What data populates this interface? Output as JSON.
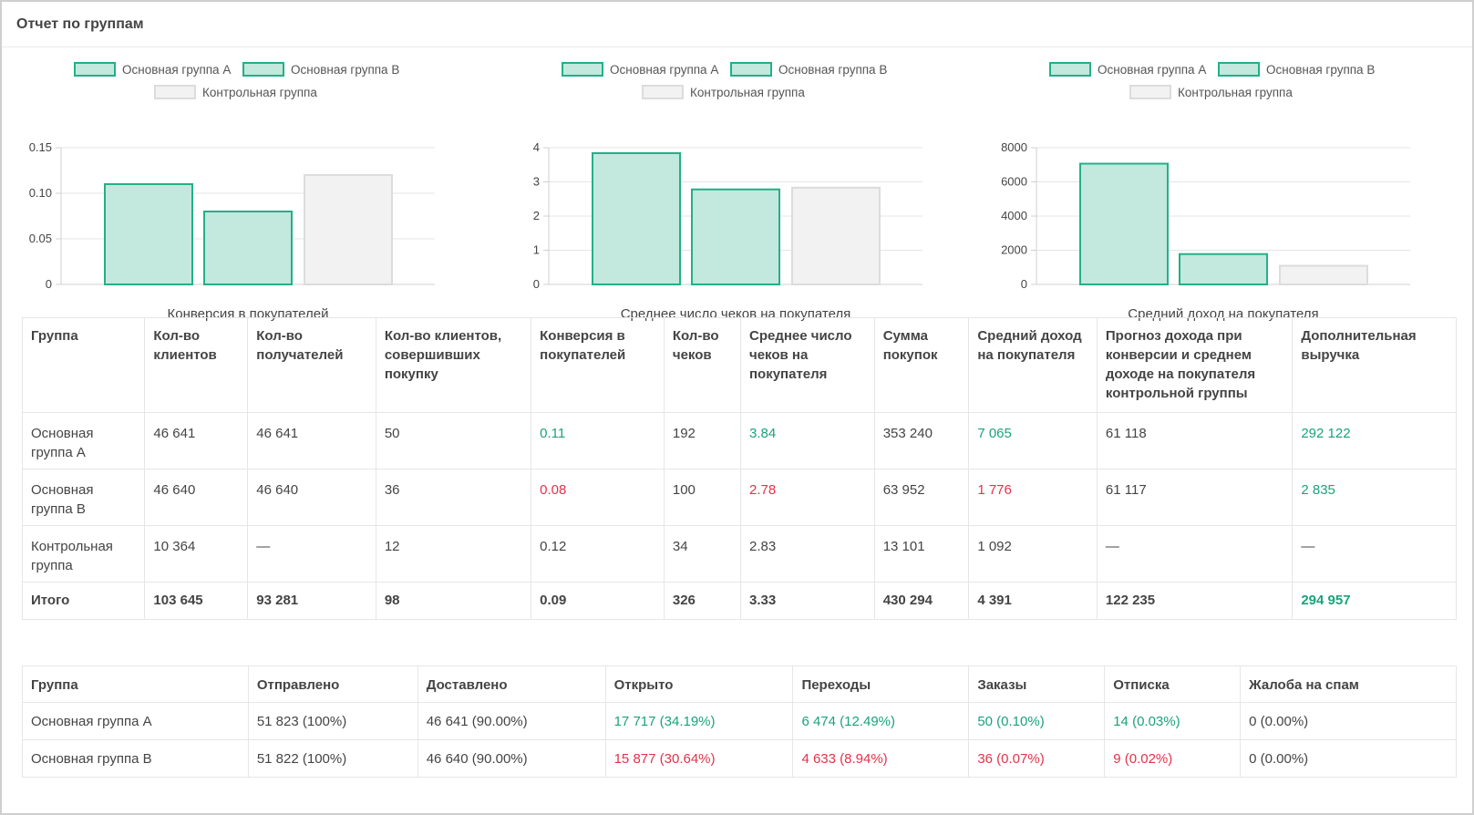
{
  "panel": {
    "title": "Отчет по группам"
  },
  "legend": {
    "group_a": "Основная группа А",
    "group_b": "Основная группа В",
    "control": "Контрольная группа"
  },
  "colors": {
    "group_fill": "#c3e8dd",
    "group_stroke": "#22b088",
    "control_fill": "#f2f2f2",
    "control_stroke": "#dcdcdc",
    "positive": "#1aa37a",
    "negative": "#e2334a"
  },
  "chart_data": [
    {
      "type": "bar",
      "title": "Конверсия в покупателей",
      "categories": [
        "Основная группа А",
        "Основная группа В",
        "Контрольная группа"
      ],
      "values": [
        0.11,
        0.08,
        0.12
      ],
      "ylim": [
        0,
        0.15
      ],
      "yticks": [
        0,
        0.05,
        0.1,
        0.15
      ],
      "ytick_labels": [
        "0",
        "0.05",
        "0.10",
        "0.15"
      ],
      "grid": true,
      "legend": "top"
    },
    {
      "type": "bar",
      "title": "Среднее число чеков на покупателя",
      "categories": [
        "Основная группа А",
        "Основная группа В",
        "Контрольная группа"
      ],
      "values": [
        3.84,
        2.78,
        2.83
      ],
      "ylim": [
        0,
        4
      ],
      "yticks": [
        0,
        1,
        2,
        3,
        4
      ],
      "ytick_labels": [
        "0",
        "1",
        "2",
        "3",
        "4"
      ],
      "grid": true,
      "legend": "top"
    },
    {
      "type": "bar",
      "title": "Средний доход на покупателя",
      "categories": [
        "Основная группа А",
        "Основная группа В",
        "Контрольная группа"
      ],
      "values": [
        7065,
        1776,
        1092
      ],
      "ylim": [
        0,
        8000
      ],
      "yticks": [
        0,
        2000,
        4000,
        6000,
        8000
      ],
      "ytick_labels": [
        "0",
        "2000",
        "4000",
        "6000",
        "8000"
      ],
      "grid": true,
      "legend": "top"
    }
  ],
  "summary_table": {
    "headers": [
      "Группа",
      "Кол-во клиентов",
      "Кол-во получателей",
      "Кол-во клиентов, совершивших покупку",
      "Конверсия в покупателей",
      "Кол-во чеков",
      "Среднее число чеков на покупателя",
      "Сумма покупок",
      "Средний доход на покупателя",
      "Прогноз дохода при конверсии и среднем доходе на покупателя контрольной группы",
      "Дополнительная выручка"
    ],
    "rows": [
      {
        "cells": [
          "Основная группа А",
          "46 641",
          "46 641",
          "50",
          "0.11",
          "192",
          "3.84",
          "353 240",
          "7 065",
          "61 118",
          "292 122"
        ],
        "tones": [
          "",
          "",
          "",
          "",
          "green",
          "",
          "green",
          "",
          "green",
          "",
          "green"
        ]
      },
      {
        "cells": [
          "Основная группа В",
          "46 640",
          "46 640",
          "36",
          "0.08",
          "100",
          "2.78",
          "63 952",
          "1 776",
          "61 117",
          "2 835"
        ],
        "tones": [
          "",
          "",
          "",
          "",
          "red",
          "",
          "red",
          "",
          "red",
          "",
          "green"
        ]
      },
      {
        "cells": [
          "Контрольная группа",
          "10 364",
          "—",
          "12",
          "0.12",
          "34",
          "2.83",
          "13 101",
          "1 092",
          "—",
          "—"
        ],
        "tones": [
          "",
          "",
          "",
          "",
          "",
          "",
          "",
          "",
          "",
          "",
          ""
        ]
      }
    ],
    "total": {
      "cells": [
        "Итого",
        "103 645",
        "93 281",
        "98",
        "0.09",
        "326",
        "3.33",
        "430 294",
        "4 391",
        "122 235",
        "294 957"
      ],
      "tones": [
        "",
        "",
        "",
        "",
        "",
        "",
        "",
        "",
        "",
        "",
        "green"
      ]
    }
  },
  "mailing_table": {
    "headers": [
      "Группа",
      "Отправлено",
      "Доставлено",
      "Открыто",
      "Переходы",
      "Заказы",
      "Отписка",
      "Жалоба на спам"
    ],
    "rows": [
      {
        "cells": [
          "Основная группа А",
          "51 823 (100%)",
          "46 641 (90.00%)",
          "17 717 (34.19%)",
          "6 474 (12.49%)",
          "50 (0.10%)",
          "14 (0.03%)",
          "0 (0.00%)"
        ],
        "tones": [
          "",
          "",
          "",
          "green",
          "green",
          "green",
          "green",
          ""
        ]
      },
      {
        "cells": [
          "Основная группа В",
          "51 822 (100%)",
          "46 640 (90.00%)",
          "15 877 (30.64%)",
          "4 633 (8.94%)",
          "36 (0.07%)",
          "9 (0.02%)",
          "0 (0.00%)"
        ],
        "tones": [
          "",
          "",
          "",
          "red",
          "red",
          "red",
          "red",
          ""
        ]
      }
    ]
  }
}
